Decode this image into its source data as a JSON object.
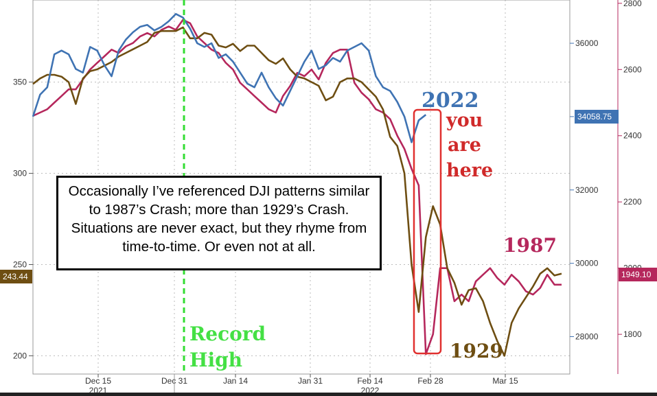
{
  "chart_data": {
    "type": "line",
    "x_ticks": [
      {
        "label": "Dec 15",
        "year": "2021"
      },
      {
        "label": "Dec 31",
        "year": ""
      },
      {
        "label": "Jan 14",
        "year": ""
      },
      {
        "label": "Jan 31",
        "year": ""
      },
      {
        "label": "Feb 14",
        "year": "2022"
      },
      {
        "label": "Feb 28",
        "year": ""
      },
      {
        "label": "Mar 15",
        "year": ""
      }
    ],
    "left_axis": {
      "ticks": [
        "200",
        "250",
        "300",
        "350"
      ],
      "ylim": [
        190,
        395
      ]
    },
    "right_axis_inner": {
      "ticks": [
        "28000",
        "30000",
        "32000",
        "34000",
        "36000"
      ],
      "ylim": [
        26980,
        37180
      ]
    },
    "right_axis_outer": {
      "ticks": [
        "1800",
        "2000",
        "2200",
        "2400",
        "2600",
        "2800"
      ],
      "ylim": [
        1680,
        2810
      ]
    },
    "series": [
      {
        "name": "2022",
        "axis": "inner",
        "color": "#3f73b3",
        "values": [
          34000,
          34600,
          34800,
          35700,
          35800,
          35700,
          35300,
          35200,
          35900,
          35800,
          35400,
          35100,
          35800,
          36100,
          36300,
          36450,
          36500,
          36350,
          36450,
          36600,
          36800,
          36700,
          36400,
          36000,
          35900,
          36000,
          35600,
          35700,
          35500,
          35200,
          34900,
          34800,
          35200,
          34800,
          34500,
          34300,
          34700,
          35100,
          35500,
          35800,
          35300,
          35400,
          35600,
          35500,
          35800,
          35900,
          36000,
          35800,
          35100,
          34800,
          34700,
          34400,
          34000,
          33300,
          33900,
          34050
        ]
      },
      {
        "name": "1987",
        "axis": "outer",
        "color": "#b5275c",
        "values": [
          2460,
          2470,
          2480,
          2500,
          2520,
          2540,
          2540,
          2570,
          2600,
          2620,
          2640,
          2660,
          2650,
          2670,
          2680,
          2700,
          2710,
          2700,
          2720,
          2730,
          2720,
          2750,
          2740,
          2700,
          2680,
          2660,
          2650,
          2620,
          2600,
          2560,
          2540,
          2520,
          2500,
          2480,
          2470,
          2520,
          2550,
          2590,
          2580,
          2600,
          2570,
          2620,
          2650,
          2660,
          2660,
          2560,
          2530,
          2510,
          2480,
          2470,
          2450,
          2400,
          2360,
          2300,
          2250,
          1740,
          1800,
          2000,
          2000,
          1900,
          1920,
          1900,
          1960,
          1980,
          2000,
          1970,
          1950,
          1980,
          1960,
          1930,
          1920,
          1940,
          1980,
          1950,
          1950
        ]
      },
      {
        "name": "1929",
        "axis": "left",
        "color": "#6e4e12",
        "values": [
          349,
          352,
          354,
          354,
          353,
          350,
          338,
          352,
          356,
          357,
          359,
          361,
          364,
          366,
          368,
          370,
          372,
          377,
          378,
          378,
          378,
          380,
          374,
          374,
          377,
          376,
          370,
          369,
          371,
          367,
          370,
          370,
          366,
          362,
          360,
          363,
          357,
          353,
          352,
          350,
          348,
          340,
          342,
          350,
          352,
          352,
          350,
          346,
          342,
          335,
          320,
          315,
          300,
          250,
          224,
          265,
          282,
          272,
          248,
          240,
          228,
          236,
          237,
          230,
          218,
          208,
          200,
          218,
          226,
          232,
          238,
          245,
          248,
          244,
          245
        ]
      }
    ],
    "annotations": {
      "year_2022": "2022",
      "year_1987": "1987",
      "year_1929": "1929",
      "you_are_here": [
        "you",
        "are",
        "here"
      ],
      "record_high": [
        "Record",
        "High"
      ]
    },
    "value_tags": {
      "left": "243.44",
      "inner": "34058.75",
      "outer": "1949.10"
    },
    "note": "Occasionally I’ve referenced DJI patterns similar to 1987’s Crash; more than 1929’s Crash. Situations are never exact, but they rhyme from time-to-time. Or even not at all."
  },
  "colors": {
    "series_2022": "#3f73b3",
    "series_1987": "#b5275c",
    "series_1929": "#6e4e12",
    "record_line": "#33dd33",
    "highlight_box": "#e0302f"
  }
}
